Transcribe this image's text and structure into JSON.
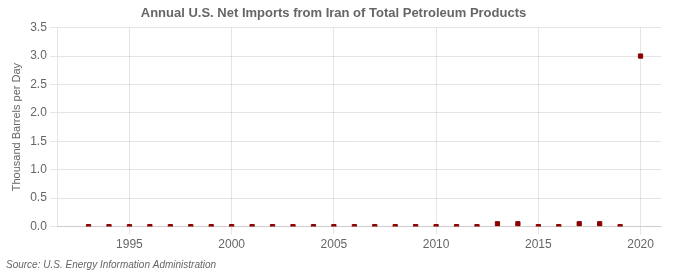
{
  "chart_data": {
    "type": "scatter",
    "title": "Annual U.S. Net Imports from Iran of Total Petroleum Products",
    "ylabel": "Thousand Barrels per Day",
    "source": "Source: U.S. Energy Information Administration",
    "x": [
      1993,
      1994,
      1995,
      1996,
      1997,
      1998,
      1999,
      2000,
      2001,
      2002,
      2003,
      2004,
      2005,
      2006,
      2007,
      2008,
      2009,
      2010,
      2011,
      2012,
      2013,
      2014,
      2015,
      2016,
      2017,
      2018,
      2019,
      2020
    ],
    "values": [
      0.0,
      0.0,
      0.0,
      0.0,
      0.0,
      0.0,
      0.0,
      0.0,
      0.0,
      0.0,
      0.0,
      0.0,
      0.0,
      0.0,
      0.0,
      0.0,
      0.0,
      0.0,
      0.0,
      0.0,
      0.05,
      0.05,
      0.0,
      0.0,
      0.05,
      0.05,
      0.0,
      3.0
    ],
    "color": "#8b0000",
    "marker": "square",
    "xlim": [
      1991.5,
      2021
    ],
    "xticks": [
      1995,
      2000,
      2005,
      2010,
      2015,
      2020
    ],
    "ylim": [
      0,
      3.5
    ],
    "yticks": [
      {
        "value": 0.0,
        "label": "0.0"
      },
      0.5,
      {
        "value": 1.0,
        "label": "1.0"
      },
      1.5,
      {
        "value": 2.0,
        "label": "2.0"
      },
      2.5,
      {
        "value": 3.0,
        "label": "3.0"
      },
      3.5
    ],
    "grid": true
  }
}
